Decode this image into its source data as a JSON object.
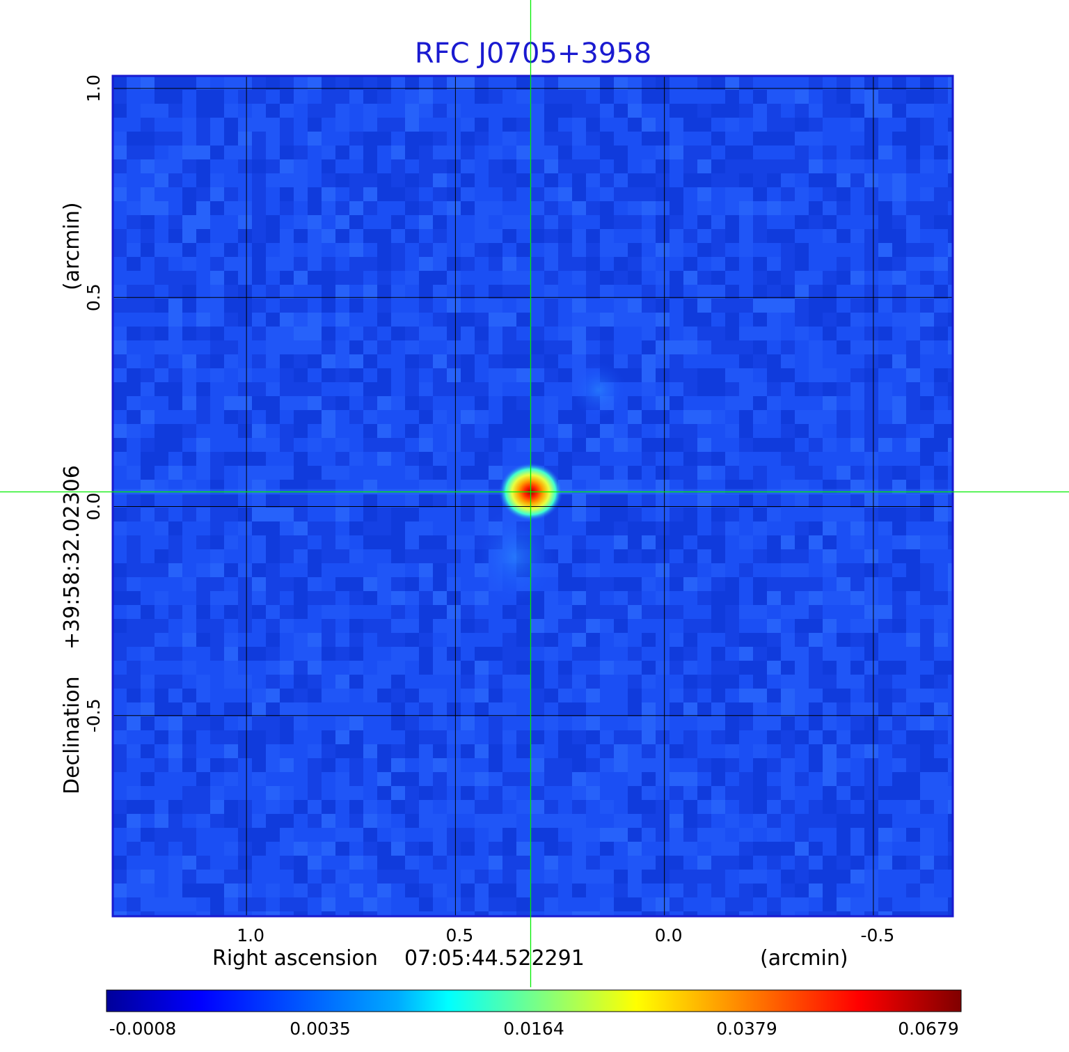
{
  "chart_data": {
    "type": "heatmap",
    "title": "RFC J0705+3958",
    "colormap": "jet",
    "x_axis": {
      "label": "Right ascension",
      "center_value": "07:05:44.522291",
      "unit": "(arcmin)",
      "ticks": [
        "1.0",
        "0.5",
        "0.0",
        "-0.5"
      ],
      "tick_values": [
        1.0,
        0.5,
        0.0,
        -0.5
      ],
      "range": [
        1.32,
        -0.69
      ],
      "direction": "decreasing to the right"
    },
    "y_axis": {
      "label": "Declination",
      "center_value": "+39:58:32.02306",
      "unit": "(arcmin)",
      "ticks": [
        "1.0",
        "0.5",
        "0.0",
        "-0.5"
      ],
      "tick_values": [
        1.0,
        0.5,
        0.0,
        -0.5
      ],
      "range": [
        -0.98,
        1.03
      ]
    },
    "grid": true,
    "crosshair": {
      "x": 0.32,
      "y": 0.035,
      "color": "#00ee00"
    },
    "source_peak": {
      "x": 0.32,
      "y": 0.035,
      "value": 0.0679
    },
    "colorbar": {
      "ticks": [
        "-0.0008",
        "0.0035",
        "0.0164",
        "0.0379",
        "0.0679"
      ],
      "tick_values": [
        -0.0008,
        0.0035,
        0.0164,
        0.0379,
        0.0679
      ]
    }
  }
}
